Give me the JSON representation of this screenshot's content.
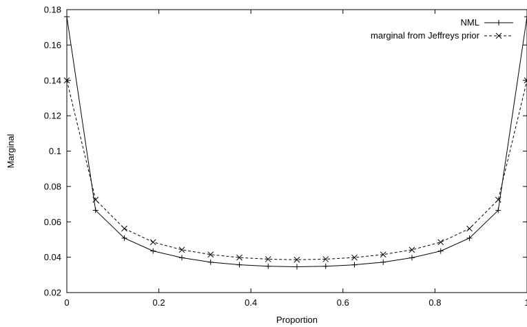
{
  "chart_data": {
    "type": "line",
    "xlabel": "Proportion",
    "ylabel": "Marginal",
    "xlim": [
      0,
      1
    ],
    "ylim": [
      0.02,
      0.18
    ],
    "x_ticks": [
      0,
      0.2,
      0.4,
      0.6,
      0.8,
      1
    ],
    "x_tick_labels": [
      "0",
      "0.2",
      "0.4",
      "0.6",
      "0.8",
      "1"
    ],
    "y_ticks": [
      0.02,
      0.04,
      0.06,
      0.08,
      0.1,
      0.12,
      0.14,
      0.16,
      0.18
    ],
    "y_tick_labels": [
      "0.02",
      "0.04",
      "0.06",
      "0.08",
      "0.1",
      "0.12",
      "0.14",
      "0.16",
      "0.18"
    ],
    "grid": false,
    "legend_position": "top-right",
    "x": [
      0,
      0.0625,
      0.125,
      0.1875,
      0.25,
      0.3125,
      0.375,
      0.4375,
      0.5,
      0.5625,
      0.625,
      0.6875,
      0.75,
      0.8125,
      0.875,
      0.9375,
      1
    ],
    "series": [
      {
        "name": "NML",
        "marker": "plus",
        "line_style": "solid",
        "color": "#000000",
        "values": [
          0.176,
          0.0665,
          0.0508,
          0.0435,
          0.0397,
          0.0372,
          0.0357,
          0.0349,
          0.0346,
          0.0349,
          0.0357,
          0.0372,
          0.0397,
          0.0435,
          0.0508,
          0.0665,
          0.176
        ]
      },
      {
        "name": "marginal from Jeffreys prior",
        "marker": "cross",
        "line_style": "dashed",
        "color": "#000000",
        "values": [
          0.14,
          0.0725,
          0.0562,
          0.0485,
          0.0442,
          0.0415,
          0.0398,
          0.0389,
          0.0386,
          0.0389,
          0.0398,
          0.0415,
          0.0442,
          0.0485,
          0.0562,
          0.0725,
          0.14
        ]
      }
    ]
  }
}
